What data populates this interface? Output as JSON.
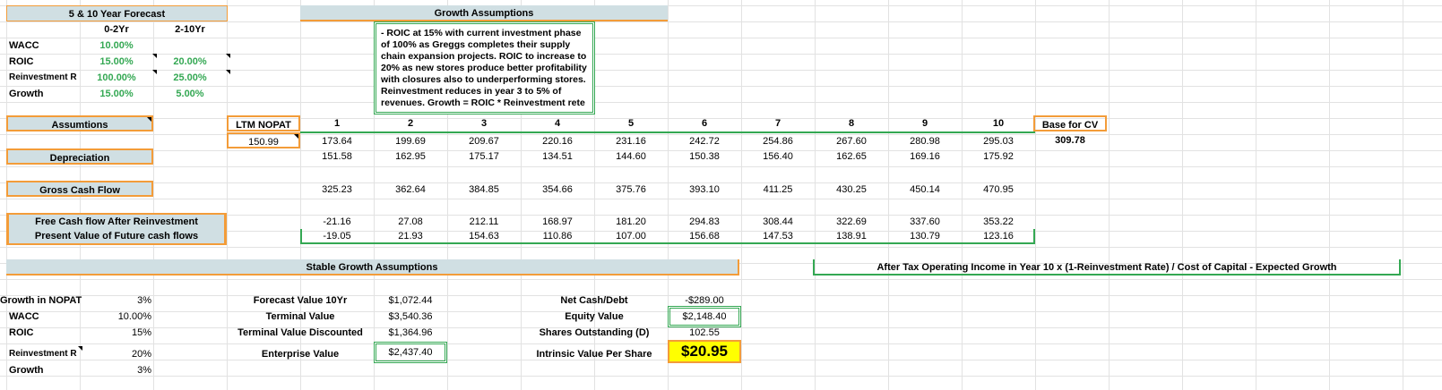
{
  "forecast": {
    "title": "5 & 10 Year Forecast",
    "col1": "0-2Yr",
    "col2": "2-10Yr",
    "rows": [
      {
        "label": "WACC",
        "v1": "10.00%",
        "v2": ""
      },
      {
        "label": "ROIC",
        "v1": "15.00%",
        "v2": "20.00%"
      },
      {
        "label": "Reinvestment R",
        "v1": "100.00%",
        "v2": "25.00%"
      },
      {
        "label": "Growth",
        "v1": "15.00%",
        "v2": "5.00%"
      }
    ]
  },
  "growth_assumptions": {
    "title": "Growth Assumptions",
    "note": "- ROIC at 15% with current investment phase of 100% as Greggs completes their supply chain expansion projects. ROIC to increase to 20% as new stores produce better profitability with closures also to underperforming stores. Reinvestment reduces in year 3 to 5% of revenues. Growth = ROIC * Reinvestment rete"
  },
  "labels": {
    "assumptions": "Assumtions",
    "depreciation": "Depreciation",
    "gross_cash_flow": "Gross Cash Flow",
    "fcf": "Free Cash flow After Reinvestment",
    "pv": "Present Value of Future cash flows",
    "ltm_nopat": "LTM NOPAT",
    "ltm_value": "150.99",
    "base_cv": "Base for CV",
    "base_cv_value": "309.78"
  },
  "years": [
    "1",
    "2",
    "3",
    "4",
    "5",
    "6",
    "7",
    "8",
    "9",
    "10"
  ],
  "nopat": [
    "173.64",
    "199.69",
    "209.67",
    "220.16",
    "231.16",
    "242.72",
    "254.86",
    "267.60",
    "280.98",
    "295.03"
  ],
  "depreciation": [
    "151.58",
    "162.95",
    "175.17",
    "134.51",
    "144.60",
    "150.38",
    "156.40",
    "162.65",
    "169.16",
    "175.92"
  ],
  "gross_cash_flow": [
    "325.23",
    "362.64",
    "384.85",
    "354.66",
    "375.76",
    "393.10",
    "411.25",
    "430.25",
    "450.14",
    "470.95"
  ],
  "fcf": [
    "-21.16",
    "27.08",
    "212.11",
    "168.97",
    "181.20",
    "294.83",
    "308.44",
    "322.69",
    "337.60",
    "353.22"
  ],
  "pv": [
    "-19.05",
    "21.93",
    "154.63",
    "110.86",
    "107.00",
    "156.68",
    "147.53",
    "138.91",
    "130.79",
    "123.16"
  ],
  "stable": {
    "title": "Stable Growth Assumptions",
    "formula": "After Tax Operating Income in Year 10 x (1-Reinvestment Rate) / Cost of Capital - Expected Growth",
    "left": [
      {
        "label": "Growth in  NOPAT",
        "value": "3%"
      },
      {
        "label": "WACC",
        "value": "10.00%"
      },
      {
        "label": "ROIC",
        "value": "15%"
      },
      {
        "label": "Reinvestment R",
        "value": "20%"
      },
      {
        "label": "Growth",
        "value": "3%"
      }
    ],
    "mid": [
      {
        "label": "Forecast Value 10Yr",
        "value": "$1,072.44"
      },
      {
        "label": "Terminal Value",
        "value": "$3,540.36"
      },
      {
        "label": "Terminal  Value Discounted",
        "value": "$1,364.96"
      },
      {
        "label": "Enterprise Value",
        "value": "$2,437.40"
      }
    ],
    "right": [
      {
        "label": "Net Cash/Debt",
        "value": "-$289.00"
      },
      {
        "label": "Equity Value",
        "value": "$2,148.40"
      },
      {
        "label": "Shares Outstanding (D)",
        "value": "102.55"
      },
      {
        "label": "Intrinsic Value Per Share",
        "value": "$20.95"
      }
    ]
  },
  "colors": {
    "accent_orange": "#f39c39",
    "accent_green": "#34a853",
    "header_bg": "#d0dfe3",
    "highlight": "#ffff00"
  }
}
